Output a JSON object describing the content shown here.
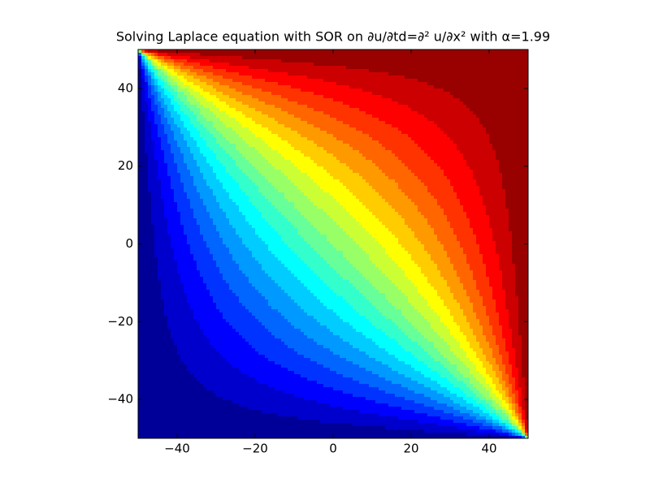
{
  "chart_data": {
    "type": "contour",
    "title": "Solving Laplace equation with SOR on ∂u/∂td=∂² u/∂x²  with α=1.99",
    "colormap": "jet",
    "levels": 20,
    "xlim": [
      -50,
      50
    ],
    "ylim": [
      -50,
      50
    ],
    "xticks": [
      {
        "value": -40,
        "label": "−40"
      },
      {
        "value": -20,
        "label": "−20"
      },
      0,
      20,
      40
    ],
    "yticks": [
      {
        "value": -40,
        "label": "−40"
      },
      {
        "value": -20,
        "label": "−20"
      },
      0,
      20,
      40
    ]
  }
}
